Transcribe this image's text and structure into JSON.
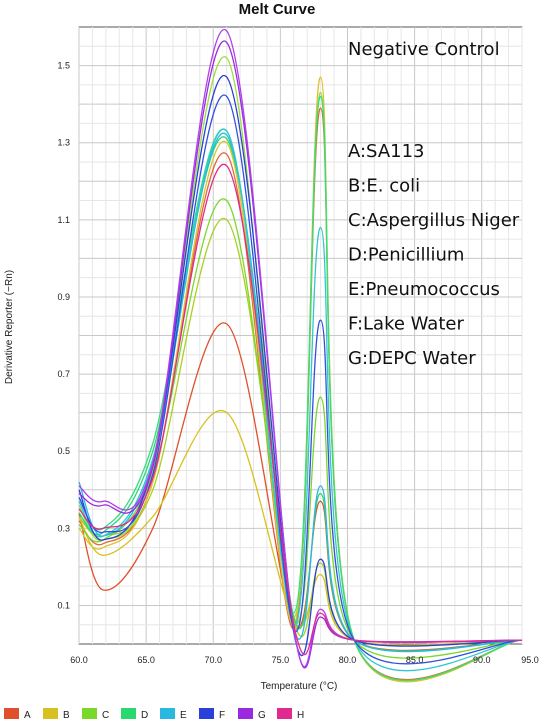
{
  "chart_data": {
    "type": "line",
    "title": "Melt Curve",
    "xlabel": "Temperature (°C)",
    "ylabel": "Derivative Reporter (−Rn)",
    "xlim": [
      60.0,
      93.0
    ],
    "ylim": [
      0.0,
      1.6
    ],
    "x_ticks": [
      "60.0",
      "65.0",
      "70.0",
      "75.0",
      "80.0",
      "85.0",
      "90.0",
      "95.0"
    ],
    "x_tick_values": [
      60,
      65,
      70,
      75,
      80,
      85,
      90,
      95
    ],
    "y_ticks": [
      "0.1",
      "0.3",
      "0.5",
      "0.7",
      "0.9",
      "1.1",
      "1.3",
      "1.5"
    ],
    "y_tick_values": [
      0.1,
      0.3,
      0.5,
      0.7,
      0.9,
      1.1,
      1.3,
      1.5
    ],
    "grid": true,
    "legend_position": "bottom",
    "annotation_heading": "Negative Control",
    "annotation_lines": [
      "A:SA113",
      "B:E. coli",
      "C:Aspergillus Niger",
      "D:Penicillium",
      "E:Pneumococcus",
      "F:Lake Water",
      "G:DEPC Water"
    ],
    "legend": [
      {
        "name": "A",
        "color": "#e0502a"
      },
      {
        "name": "B",
        "color": "#d8c020"
      },
      {
        "name": "C",
        "color": "#7ad82a"
      },
      {
        "name": "D",
        "color": "#2ad870"
      },
      {
        "name": "E",
        "color": "#2ab8e0"
      },
      {
        "name": "F",
        "color": "#2a40d8"
      },
      {
        "name": "G",
        "color": "#9a2ae0"
      },
      {
        "name": "H",
        "color": "#e02a90"
      }
    ],
    "series": [
      {
        "color": "#e0502a",
        "p": [
          0.34,
          0.14,
          0.3,
          0.83,
          0.05,
          0.37,
          0.01
        ]
      },
      {
        "color": "#e06a30",
        "p": [
          0.32,
          0.26,
          0.42,
          1.27,
          0.04,
          1.39,
          0.01
        ]
      },
      {
        "color": "#d8c020",
        "p": [
          0.33,
          0.23,
          0.33,
          0.6,
          0.06,
          0.18,
          0.01
        ]
      },
      {
        "color": "#e0c030",
        "p": [
          0.3,
          0.25,
          0.42,
          1.3,
          0.05,
          1.47,
          0.01
        ]
      },
      {
        "color": "#a8d020",
        "p": [
          0.33,
          0.28,
          0.4,
          1.1,
          0.06,
          0.21,
          0.01
        ]
      },
      {
        "color": "#7ad82a",
        "p": [
          0.31,
          0.27,
          0.44,
          1.15,
          0.06,
          0.64,
          0.01
        ]
      },
      {
        "color": "#9adf3a",
        "p": [
          0.36,
          0.27,
          0.45,
          1.52,
          0.07,
          1.43,
          0.01
        ]
      },
      {
        "color": "#2ad870",
        "p": [
          0.34,
          0.29,
          0.5,
          1.31,
          0.07,
          0.39,
          0.01
        ]
      },
      {
        "color": "#30e080",
        "p": [
          0.38,
          0.3,
          0.52,
          1.33,
          0.08,
          1.42,
          0.01
        ]
      },
      {
        "color": "#2ab8e0",
        "p": [
          0.42,
          0.28,
          0.47,
          1.32,
          0.04,
          0.41,
          0.01
        ]
      },
      {
        "color": "#30c8d0",
        "p": [
          0.37,
          0.28,
          0.48,
          1.33,
          0.05,
          1.08,
          0.01
        ]
      },
      {
        "color": "#2a40d8",
        "p": [
          0.4,
          0.27,
          0.46,
          1.47,
          0.03,
          0.22,
          0.01
        ]
      },
      {
        "color": "#3050e0",
        "p": [
          0.38,
          0.29,
          0.44,
          1.42,
          0.04,
          0.84,
          0.01
        ]
      },
      {
        "color": "#9a2ae0",
        "p": [
          0.39,
          0.36,
          0.46,
          1.56,
          0.04,
          0.07,
          0.01
        ]
      },
      {
        "color": "#b040e8",
        "p": [
          0.41,
          0.37,
          0.47,
          1.59,
          0.04,
          0.09,
          0.01
        ]
      },
      {
        "color": "#e02a90",
        "p": [
          0.35,
          0.3,
          0.43,
          1.24,
          0.05,
          0.08,
          0.01
        ]
      }
    ]
  }
}
